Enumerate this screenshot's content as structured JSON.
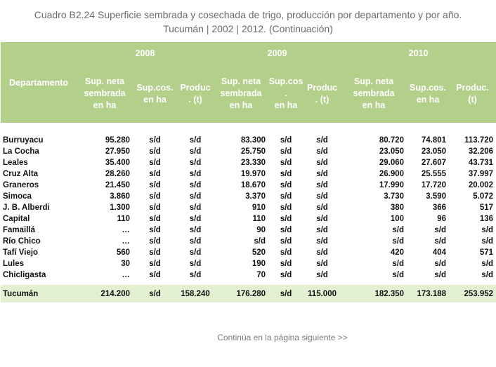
{
  "title_line1": "Cuadro B2.24 Superficie sembrada y cosechada de trigo, producción por departamento y por año.",
  "title_line2": "Tucumán | 2002 | 2012. (Continuación)",
  "header": {
    "dept": "Departamento",
    "years": [
      "2008",
      "2009",
      "2010"
    ],
    "sub": [
      [
        "Sup. neta",
        "sembrada",
        "en ha"
      ],
      [
        "Sup.cos.",
        "en ha"
      ],
      [
        "Produc",
        ". (t)"
      ],
      [
        "Sup. neta",
        "sembrada",
        "en ha"
      ],
      [
        "Sup.cos",
        ".",
        "en ha"
      ],
      [
        "Produc",
        ". (t)"
      ],
      [
        "Sup. neta",
        "sembrada",
        "en ha"
      ],
      [
        "Sup.cos.",
        "en ha"
      ],
      [
        "Produc.",
        "(t)"
      ]
    ]
  },
  "rows": [
    [
      "Burruyacu",
      "95.280",
      "s/d",
      "s/d",
      "83.300",
      "s/d",
      "s/d",
      "80.720",
      "74.801",
      "113.720"
    ],
    [
      "La Cocha",
      "27.950",
      "s/d",
      "s/d",
      "25.750",
      "s/d",
      "s/d",
      "23.050",
      "23.050",
      "32.206"
    ],
    [
      "Leales",
      "35.400",
      "s/d",
      "s/d",
      "23.330",
      "s/d",
      "s/d",
      "29.060",
      "27.607",
      "43.731"
    ],
    [
      "Cruz Alta",
      "28.260",
      "s/d",
      "s/d",
      "19.970",
      "s/d",
      "s/d",
      "26.900",
      "25.555",
      "37.997"
    ],
    [
      "Graneros",
      "21.450",
      "s/d",
      "s/d",
      "18.670",
      "s/d",
      "s/d",
      "17.990",
      "17.720",
      "20.002"
    ],
    [
      "Simoca",
      "3.860",
      "s/d",
      "s/d",
      "3.370",
      "s/d",
      "s/d",
      "3.730",
      "3.590",
      "5.072"
    ],
    [
      "J. B. Alberdi",
      "1.300",
      "s/d",
      "s/d",
      "910",
      "s/d",
      "s/d",
      "380",
      "366",
      "517"
    ],
    [
      "Capital",
      "110",
      "s/d",
      "s/d",
      "110",
      "s/d",
      "s/d",
      "100",
      "96",
      "136"
    ],
    [
      "Famaillá",
      "…",
      "s/d",
      "s/d",
      "90",
      "s/d",
      "s/d",
      "s/d",
      "s/d",
      "s/d"
    ],
    [
      "Río Chico",
      "…",
      "s/d",
      "s/d",
      "s/d",
      "s/d",
      "s/d",
      "s/d",
      "s/d",
      "s/d"
    ],
    [
      "Tafí Viejo",
      "560",
      "s/d",
      "s/d",
      "520",
      "s/d",
      "s/d",
      "420",
      "404",
      "571"
    ],
    [
      "Lules",
      "30",
      "s/d",
      "s/d",
      "190",
      "s/d",
      "s/d",
      "s/d",
      "s/d",
      "s/d"
    ],
    [
      "Chicligasta",
      "…",
      "s/d",
      "s/d",
      "70",
      "s/d",
      "s/d",
      "s/d",
      "s/d",
      "s/d"
    ]
  ],
  "total": [
    "Tucumán",
    "214.200",
    "s/d",
    "158.240",
    "176.280",
    "s/d",
    "115.000",
    "182.350",
    "173.188",
    "253.952"
  ],
  "footer": "Continúa en la página siguiente >>"
}
